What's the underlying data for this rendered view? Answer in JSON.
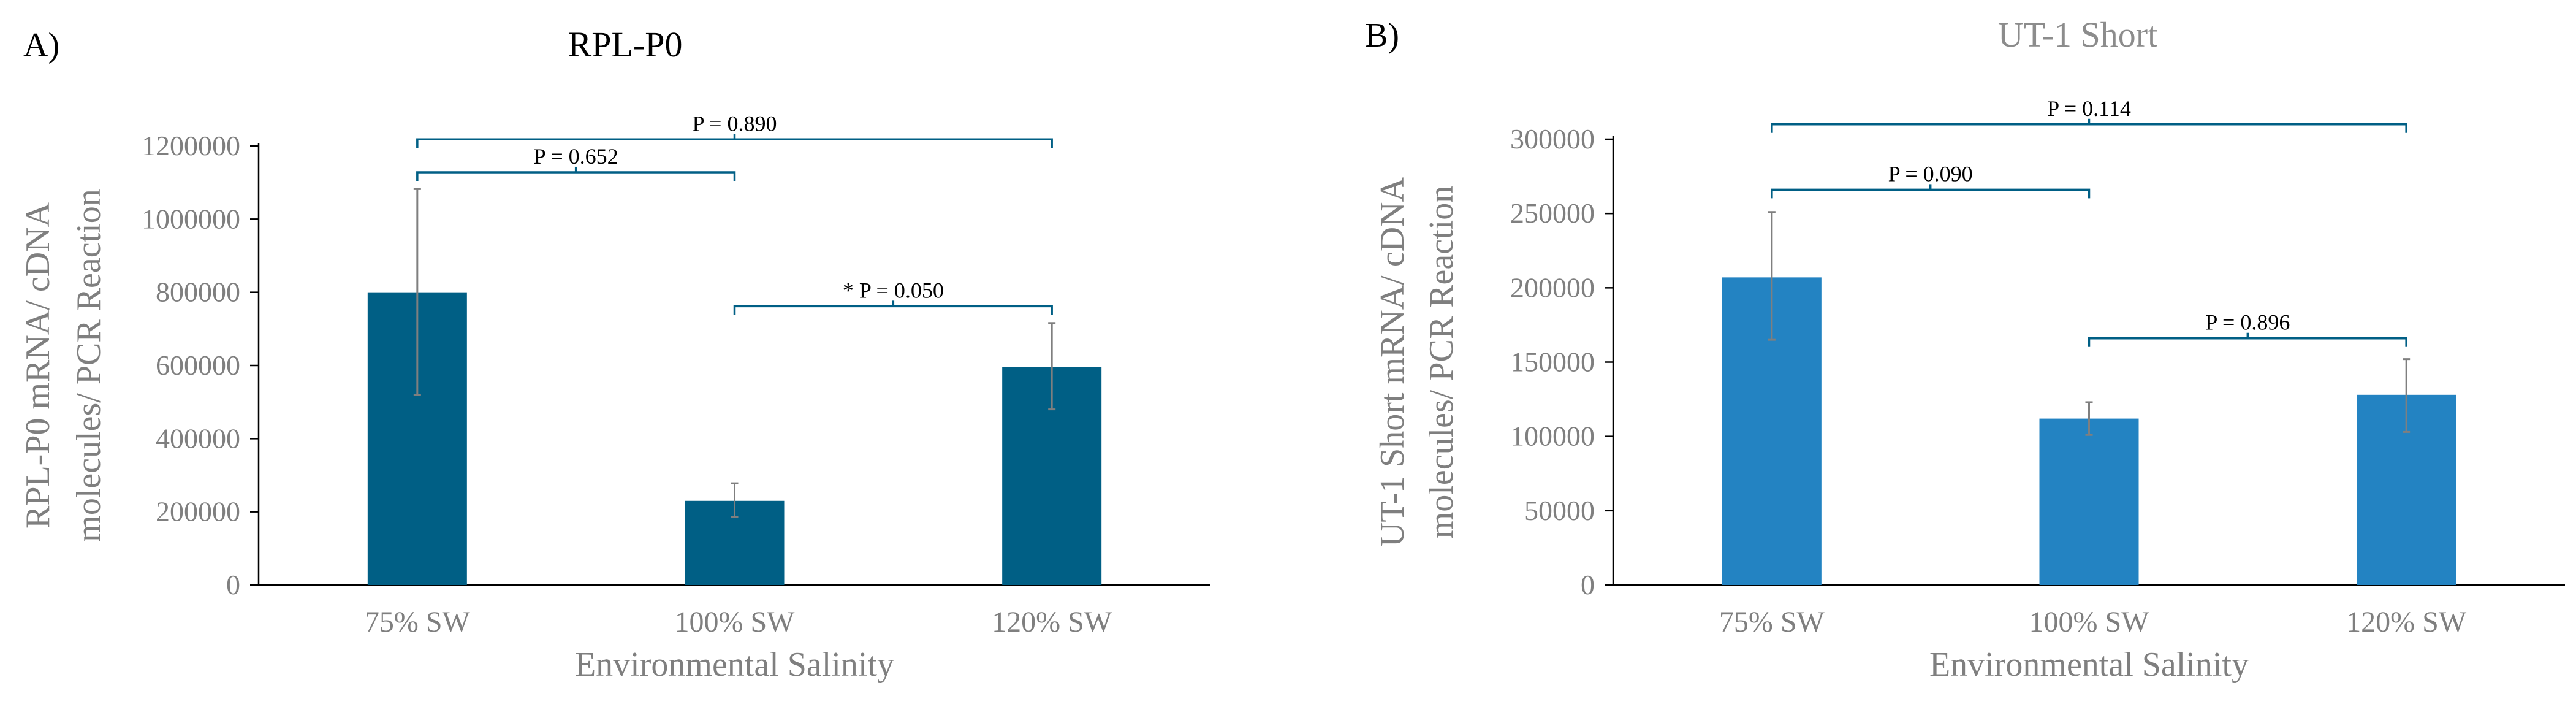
{
  "chart_data": [
    {
      "type": "bar",
      "panel_label": "A)",
      "title": "RPL-P0",
      "xlabel": "Environmental Salinity",
      "ylabel_lines": [
        "RPL-P0 mRNA/ cDNA",
        "molecules/  PCR Reaction"
      ],
      "categories": [
        "75% SW",
        "100% SW",
        "120% SW"
      ],
      "values": [
        800000,
        230000,
        596000
      ],
      "error_low": [
        520000,
        186000,
        480000
      ],
      "error_high": [
        1082000,
        278000,
        716000
      ],
      "ylim": [
        0,
        1200000
      ],
      "yticks": [
        0,
        200000,
        400000,
        600000,
        800000,
        1000000,
        1200000
      ],
      "ytick_labels": [
        "0",
        "200000",
        "400000",
        "600000",
        "800000",
        "1000000",
        "1200000"
      ],
      "bar_color": "#005f85",
      "title_color": "#000000",
      "comparisons": [
        {
          "from": 0,
          "to": 2,
          "label": "P = 0.890",
          "level": 1218000
        },
        {
          "from": 0,
          "to": 1,
          "label": "P = 0.652",
          "level": 1128000
        },
        {
          "from": 1,
          "to": 2,
          "label": "* P = 0.050",
          "level": 762000
        }
      ]
    },
    {
      "type": "bar",
      "panel_label": "B)",
      "title": "UT-1 Short",
      "xlabel": "Environmental Salinity",
      "ylabel_lines": [
        "UT-1 Short  mRNA/ cDNA",
        "molecules/  PCR Reaction"
      ],
      "categories": [
        "75% SW",
        "100% SW",
        "120% SW"
      ],
      "values": [
        207000,
        112000,
        128000
      ],
      "error_low": [
        165000,
        101000,
        103000
      ],
      "error_high": [
        251000,
        123000,
        152000
      ],
      "ylim": [
        0,
        300000
      ],
      "yticks": [
        0,
        50000,
        100000,
        150000,
        200000,
        250000,
        300000
      ],
      "ytick_labels": [
        "0",
        "50000",
        "100000",
        "150000",
        "200000",
        "250000",
        "300000"
      ],
      "bar_color": "#2383c2",
      "title_color": "#8c8c8c",
      "comparisons": [
        {
          "from": 0,
          "to": 2,
          "label": "P = 0.114",
          "level": 310000
        },
        {
          "from": 0,
          "to": 1,
          "label": "P = 0.090",
          "level": 266000
        },
        {
          "from": 1,
          "to": 2,
          "label": "P = 0.896",
          "level": 166000
        }
      ]
    }
  ],
  "colors": {
    "axis": "#000000",
    "error_bar": "#7f7f7f",
    "bracket": "#005f85"
  }
}
